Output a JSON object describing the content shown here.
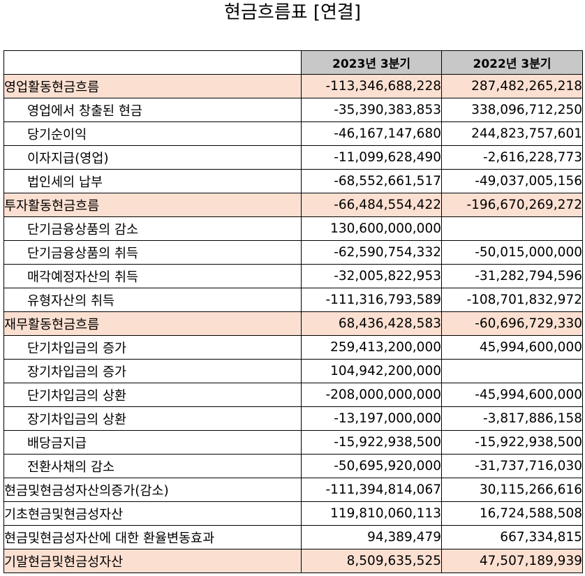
{
  "title": "현금흐름표 [연결]",
  "columns": [
    "2023년 3분기",
    "2022년 3분기"
  ],
  "rows": [
    {
      "label": "영업활동현금흐름",
      "v1": "-113,346,688,228",
      "v2": "287,482,265,218",
      "level": "main"
    },
    {
      "label": "영업에서 창출된 현금",
      "v1": "-35,390,383,853",
      "v2": "338,096,712,250",
      "level": "sub"
    },
    {
      "label": "당기순이익",
      "v1": "-46,167,147,680",
      "v2": "244,823,757,601",
      "level": "sub"
    },
    {
      "label": "이자지급(영업)",
      "v1": "-11,099,628,490",
      "v2": "-2,616,228,773",
      "level": "sub"
    },
    {
      "label": "법인세의 납부",
      "v1": "-68,552,661,517",
      "v2": "-49,037,005,156",
      "level": "sub"
    },
    {
      "label": "투자활동현금흐름",
      "v1": "-66,484,554,422",
      "v2": "-196,670,269,272",
      "level": "main"
    },
    {
      "label": "단기금융상품의 감소",
      "v1": "130,600,000,000",
      "v2": "",
      "level": "sub"
    },
    {
      "label": "단기금융상품의 취득",
      "v1": "-62,590,754,332",
      "v2": "-50,015,000,000",
      "level": "sub"
    },
    {
      "label": "매각예정자산의 취득",
      "v1": "-32,005,822,953",
      "v2": "-31,282,794,596",
      "level": "sub"
    },
    {
      "label": "유형자산의 취득",
      "v1": "-111,316,793,589",
      "v2": "-108,701,832,972",
      "level": "sub"
    },
    {
      "label": "재무활동현금흐름",
      "v1": "68,436,428,583",
      "v2": "-60,696,729,330",
      "level": "main"
    },
    {
      "label": "단기차입금의 증가",
      "v1": "259,413,200,000",
      "v2": "45,994,600,000",
      "level": "sub"
    },
    {
      "label": "장기차입금의 증가",
      "v1": "104,942,200,000",
      "v2": "",
      "level": "sub"
    },
    {
      "label": "단기차입금의 상환",
      "v1": "-208,000,000,000",
      "v2": "-45,994,600,000",
      "level": "sub"
    },
    {
      "label": "장기차입금의 상환",
      "v1": "-13,197,000,000",
      "v2": "-3,817,886,158",
      "level": "sub"
    },
    {
      "label": "배당금지급",
      "v1": "-15,922,938,500",
      "v2": "-15,922,938,500",
      "level": "sub"
    },
    {
      "label": "전환사채의 감소",
      "v1": "-50,695,920,000",
      "v2": "-31,737,716,030",
      "level": "sub"
    },
    {
      "label": "현금및현금성자산의증가(감소)",
      "v1": "-111,394,814,067",
      "v2": "30,115,266,616",
      "level": "plain"
    },
    {
      "label": "기초현금및현금성자산",
      "v1": "119,810,060,113",
      "v2": "16,724,588,508",
      "level": "plain"
    },
    {
      "label": "현금및현금성자산에 대한 환율변동효과",
      "v1": "94,389,479",
      "v2": "667,334,815",
      "level": "plain"
    },
    {
      "label": "기말현금및현금성자산",
      "v1": "8,509,635,525",
      "v2": "47,507,189,939",
      "level": "main"
    }
  ],
  "colors": {
    "header_bg": "#c8c8c8",
    "highlight_bg": "#fbe0d2",
    "border": "#000000"
  }
}
